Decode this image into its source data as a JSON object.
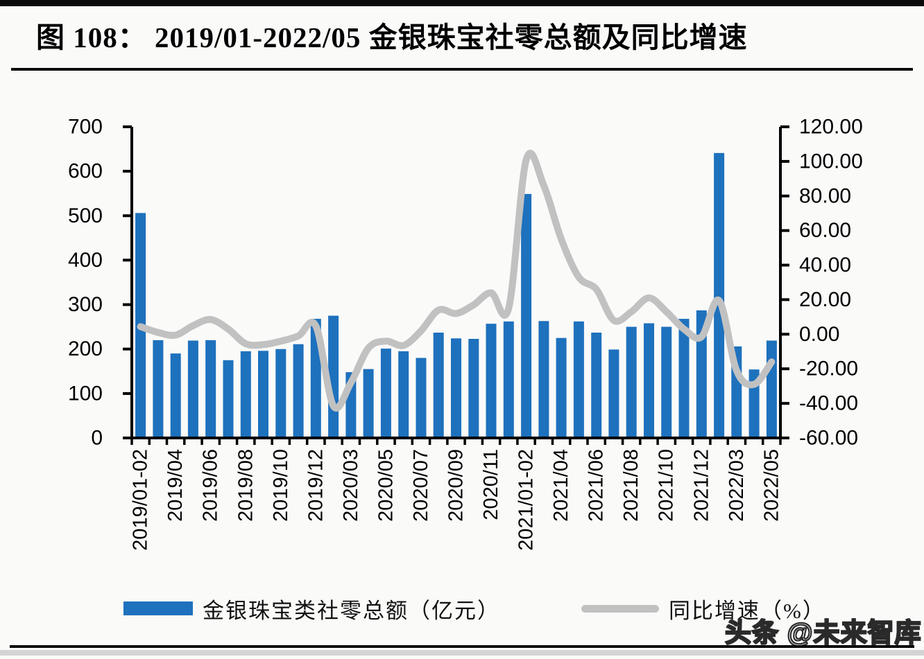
{
  "page": {
    "background": "#FAFAF9"
  },
  "header": {
    "title": "图  108：  2019/01-2022/05 金银珠宝社零总额及同比增速"
  },
  "watermark": {
    "text": "头条 @未来智库"
  },
  "legend": {
    "items": [
      {
        "label": "金银珠宝类社零总额（亿元）",
        "swatch": "bar",
        "color": "#1E71BD"
      },
      {
        "label": "同比增速（%）",
        "swatch": "line",
        "color": "#C1C1C1"
      }
    ]
  },
  "chart_data": {
    "type": "combo-bar-line",
    "title": "2019/01-2022/05 金银珠宝社零总额及同比增速",
    "grid": false,
    "legend_position": "bottom",
    "categories": [
      "2019/01-02",
      "2019/03",
      "2019/04",
      "2019/05",
      "2019/06",
      "2019/07",
      "2019/08",
      "2019/09",
      "2019/10",
      "2019/11",
      "2019/12",
      "2020/01-02",
      "2020/03",
      "2020/04",
      "2020/05",
      "2020/06",
      "2020/07",
      "2020/08",
      "2020/09",
      "2020/10",
      "2020/11",
      "2020/12",
      "2021/01-02",
      "2021/03",
      "2021/04",
      "2021/05",
      "2021/06",
      "2021/07",
      "2021/08",
      "2021/09",
      "2021/10",
      "2021/11",
      "2021/12",
      "2022/01-02",
      "2022/03",
      "2022/04",
      "2022/05"
    ],
    "visible_x_tick_labels": [
      "2019/01-02",
      "2019/04",
      "2019/06",
      "2019/08",
      "2019/10",
      "2019/12",
      "2020/03",
      "2020/05",
      "2020/07",
      "2020/09",
      "2020/11",
      "2021/01-02",
      "2021/04",
      "2021/06",
      "2021/08",
      "2021/10",
      "2021/12",
      "2022/03",
      "2022/05"
    ],
    "series": [
      {
        "name": "金银珠宝类社零总额（亿元）",
        "type": "bar",
        "axis": "left",
        "color": "#1E71BD",
        "values": [
          506,
          220,
          190,
          219,
          220,
          175,
          195,
          196,
          200,
          211,
          268,
          275,
          148,
          155,
          201,
          195,
          180,
          237,
          224,
          223,
          257,
          262,
          549,
          263,
          225,
          262,
          237,
          199,
          250,
          258,
          250,
          268,
          287,
          641,
          206,
          154,
          219
        ]
      },
      {
        "name": "同比增速（%）",
        "type": "line",
        "axis": "right",
        "color": "#C1C1C1",
        "values": [
          4.4,
          1.0,
          -0.5,
          5.0,
          8.5,
          3.0,
          -5.5,
          -6.0,
          -4.0,
          -1.0,
          4.8,
          -41.5,
          -28.0,
          -8.0,
          -4.0,
          -6.5,
          2.0,
          14.0,
          12.0,
          17.0,
          24.0,
          15.0,
          101.0,
          86.0,
          55.0,
          33.0,
          26.0,
          8.0,
          13.0,
          21.0,
          13.0,
          3.0,
          -1.5,
          19.5,
          -21.0,
          -29.0,
          -16.0
        ]
      }
    ],
    "left_axis": {
      "min": 0,
      "max": 700,
      "step": 100,
      "tick_labels": [
        "0",
        "100",
        "200",
        "300",
        "400",
        "500",
        "600",
        "700"
      ]
    },
    "right_axis": {
      "min": -60,
      "max": 120,
      "step": 20,
      "tick_labels": [
        "-60.00",
        "-40.00",
        "-20.00",
        "0.00",
        "20.00",
        "40.00",
        "60.00",
        "80.00",
        "100.00",
        "120.00"
      ]
    }
  }
}
